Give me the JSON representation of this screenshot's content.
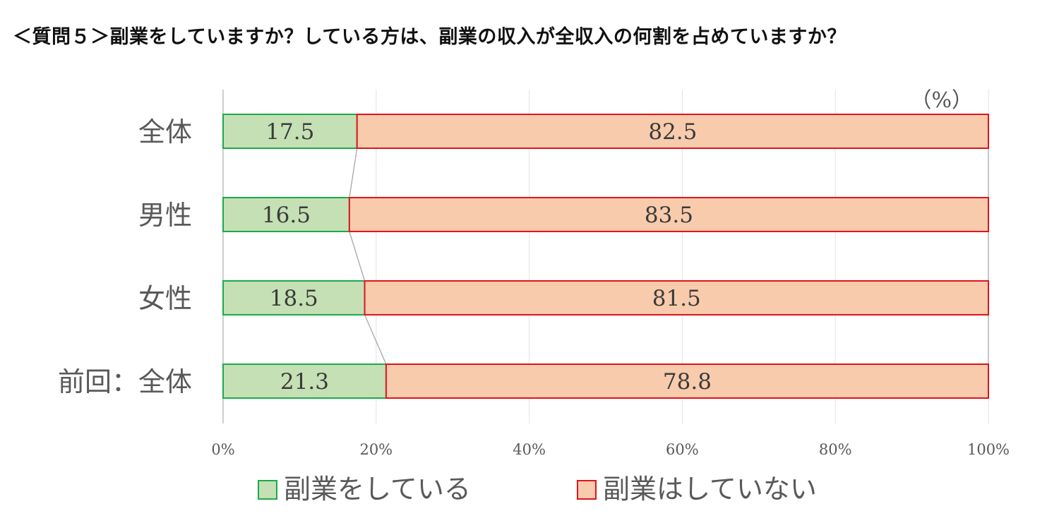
{
  "title": "＜質問５＞副業をしていますか？している方は、副業の収入が全収入の何割を占めていますか？",
  "unit_label": "（%）",
  "chart_data": {
    "type": "bar",
    "orientation": "horizontal",
    "stacked": true,
    "title": "＜質問５＞副業をしていますか？している方は、副業の収入が全収入の何割を占めていますか？",
    "unit": "（%）",
    "categories": [
      "全体",
      "男性",
      "女性",
      "前回：全体"
    ],
    "series": [
      {
        "name": "副業をしている",
        "values": [
          17.5,
          16.5,
          18.5,
          21.3
        ],
        "value_labels": [
          "17.5",
          "16.5",
          "18.5",
          "21.3"
        ],
        "color": "#c5e0b4",
        "border": "#1aaa4a"
      },
      {
        "name": "副業はしていない",
        "values": [
          82.5,
          83.5,
          81.5,
          78.8
        ],
        "value_labels": [
          "82.5",
          "83.5",
          "81.5",
          "78.8"
        ],
        "color": "#f8cbad",
        "border": "#e0141c"
      }
    ],
    "xticks": [
      "0%",
      "20%",
      "40%",
      "60%",
      "80%",
      "100%"
    ],
    "xlim": [
      0,
      100
    ],
    "grid": true,
    "series_lines": true,
    "legend_position": "bottom"
  }
}
